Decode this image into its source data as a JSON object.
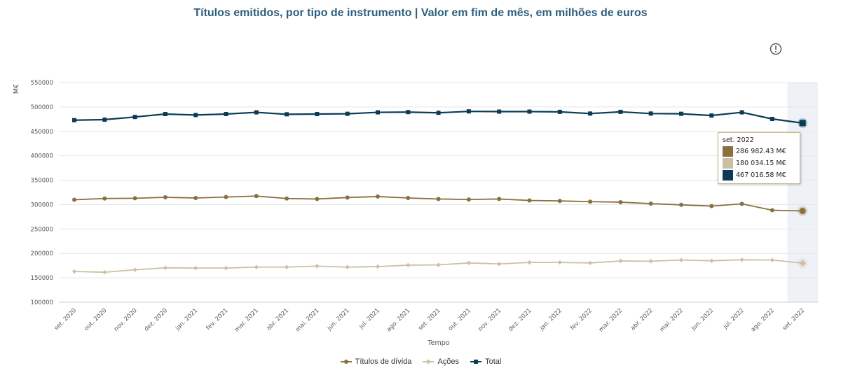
{
  "header": {
    "title": "Títulos emitidos, por tipo de instrumento | Valor em fim de mês, em milhões de euros"
  },
  "info_button": {
    "icon": "info-circle-icon"
  },
  "colors": {
    "debt": "#8b6f3e",
    "equity": "#cdbfa4",
    "total": "#0b3b57",
    "grid": "#e6e6e6",
    "highlight": "#eef1f6"
  },
  "chart_data": {
    "type": "line",
    "title": "Títulos emitidos, por tipo de instrumento | Valor em fim de mês, em milhões de euros",
    "xlabel": "Tempo",
    "ylabel": "M€",
    "ylim": [
      100000,
      550000
    ],
    "yticks": [
      100000,
      150000,
      200000,
      250000,
      300000,
      350000,
      400000,
      450000,
      500000,
      550000
    ],
    "grid": true,
    "legend_position": "bottom",
    "categories": [
      "set. 2020",
      "out. 2020",
      "nov. 2020",
      "dez. 2020",
      "jan. 2021",
      "fev. 2021",
      "mar. 2021",
      "abr. 2021",
      "mai. 2021",
      "jun. 2021",
      "jul. 2021",
      "ago. 2021",
      "set. 2021",
      "out. 2021",
      "nov. 2021",
      "dez. 2021",
      "jan. 2022",
      "fev. 2022",
      "mar. 2022",
      "abr. 2022",
      "mai. 2022",
      "jun. 2022",
      "jul. 2022",
      "ago. 2022",
      "set. 2022"
    ],
    "series": [
      {
        "name": "Títulos de dívida",
        "marker": "circle",
        "values": [
          310000,
          312500,
          313000,
          315000,
          313500,
          315500,
          317500,
          312500,
          311500,
          314500,
          316500,
          313500,
          311500,
          310500,
          311500,
          308500,
          307500,
          306000,
          305000,
          302000,
          299500,
          297000,
          301500,
          288500,
          286982.43
        ]
      },
      {
        "name": "Ações",
        "marker": "diamond",
        "values": [
          163000,
          161500,
          166500,
          170500,
          170000,
          170000,
          172000,
          172000,
          174000,
          172000,
          173000,
          176000,
          176500,
          180500,
          178500,
          181500,
          181500,
          180500,
          184500,
          184000,
          186500,
          185000,
          187000,
          186500,
          180034.15
        ]
      },
      {
        "name": "Total",
        "marker": "square",
        "values": [
          473000,
          474000,
          479500,
          485500,
          483500,
          485500,
          489000,
          485000,
          485500,
          486000,
          489000,
          489500,
          488000,
          491000,
          490500,
          490500,
          490000,
          486500,
          490000,
          486500,
          486000,
          482500,
          489000,
          475500,
          467016.58
        ]
      }
    ],
    "highlighted_category": "set. 2022"
  },
  "tooltip": {
    "date": "set. 2022",
    "rows": [
      {
        "text": "286 982.43 M€"
      },
      {
        "text": "180 034.15 M€"
      },
      {
        "text": "467 016.58 M€"
      }
    ]
  }
}
